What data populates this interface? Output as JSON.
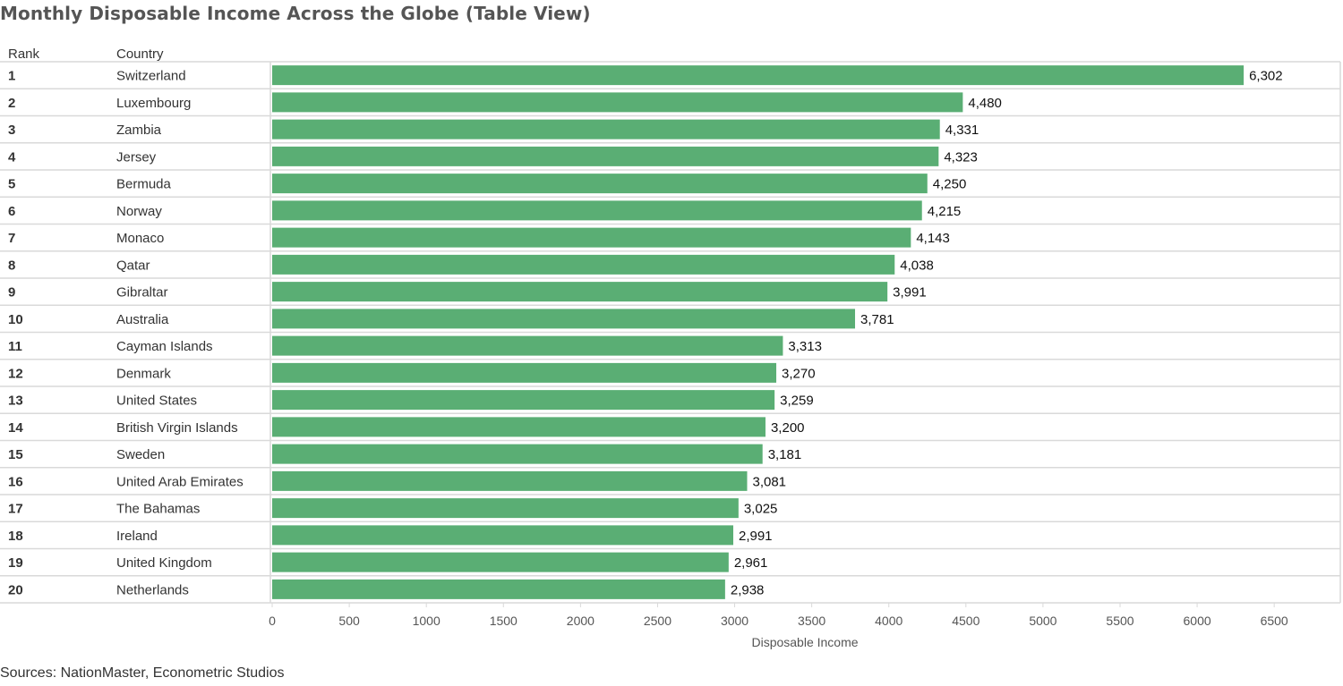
{
  "title": "Monthly Disposable Income Across the Globe (Table View)",
  "source": "Sources: NationMaster, Econometric Studios",
  "columns": {
    "rank": "Rank",
    "country": "Country"
  },
  "colors": {
    "bar": "#5aae74",
    "grid": "#d9d9d9",
    "text": "#333333",
    "label": "#111111",
    "axis": "#555555"
  },
  "chart_data": {
    "type": "bar",
    "orientation": "horizontal",
    "title": "Monthly Disposable Income Across the Globe (Table View)",
    "xlabel": "Disposable Income",
    "ylabel": "",
    "xlim": [
      0,
      7000
    ],
    "xticks": [
      0,
      500,
      1000,
      1500,
      2000,
      2500,
      3000,
      3500,
      4000,
      4500,
      5000,
      5500,
      6000,
      6500
    ],
    "xtick_labels": [
      "0",
      "500",
      "1000",
      "1500",
      "2000",
      "2500",
      "3000",
      "3500",
      "4000",
      "4500",
      "5000",
      "5500",
      "6000",
      "6500"
    ],
    "grid": false,
    "legend": "none",
    "ranks": [
      "1",
      "2",
      "3",
      "4",
      "5",
      "6",
      "7",
      "8",
      "9",
      "10",
      "11",
      "12",
      "13",
      "14",
      "15",
      "16",
      "17",
      "18",
      "19",
      "20"
    ],
    "categories": [
      "Switzerland",
      "Luxembourg",
      "Zambia",
      "Jersey",
      "Bermuda",
      "Norway",
      "Monaco",
      "Qatar",
      "Gibraltar",
      "Australia",
      "Cayman Islands",
      "Denmark",
      "United States",
      "British Virgin Islands",
      "Sweden",
      "United Arab Emirates",
      "The Bahamas",
      "Ireland",
      "United Kingdom",
      "Netherlands"
    ],
    "values": [
      6302,
      4480,
      4331,
      4323,
      4250,
      4215,
      4143,
      4038,
      3991,
      3781,
      3313,
      3270,
      3259,
      3200,
      3181,
      3081,
      3025,
      2991,
      2961,
      2938
    ],
    "value_labels": [
      "6,302",
      "4,480",
      "4,331",
      "4,323",
      "4,250",
      "4,215",
      "4,143",
      "4,038",
      "3,991",
      "3,781",
      "3,313",
      "3,270",
      "3,259",
      "3,200",
      "3,181",
      "3,081",
      "3,025",
      "2,991",
      "2,961",
      "2,938"
    ]
  }
}
